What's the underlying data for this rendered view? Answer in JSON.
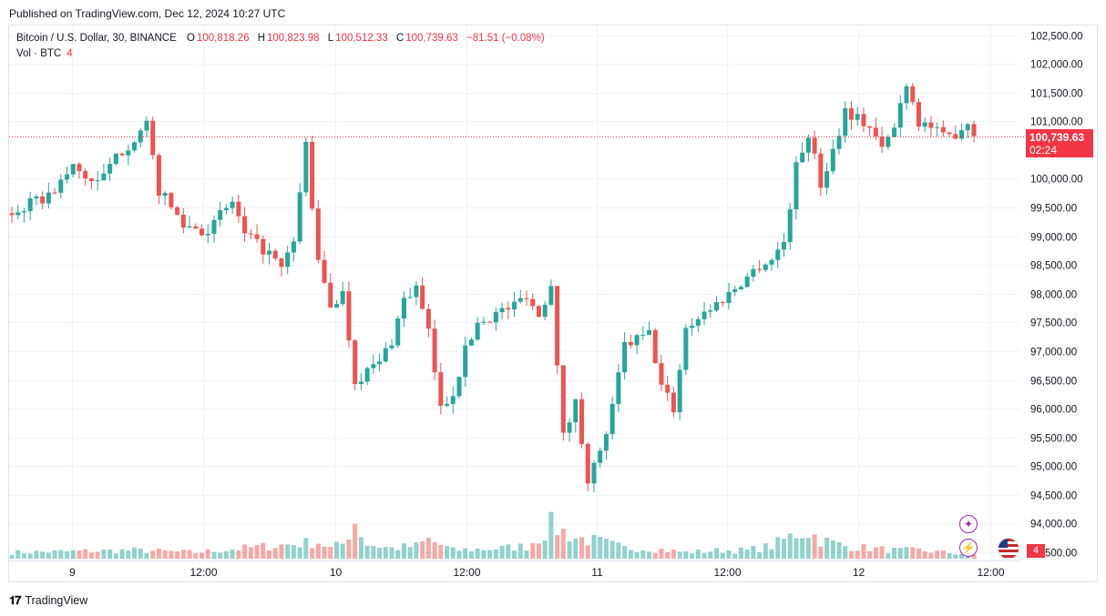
{
  "header": {
    "published": "Published on TradingView.com, Dec 12, 2024 10:27 UTC"
  },
  "legend": {
    "symbol": "Bitcoin / U.S. Dollar, 30, BINANCE",
    "o_label": "O",
    "o": "100,818.26",
    "h_label": "H",
    "h": "100,823.98",
    "l_label": "L",
    "l": "100,512.33",
    "c_label": "C",
    "c": "100,739.63",
    "change": "−81.51 (−0.08%)",
    "vol_label": "Vol · BTC",
    "vol_value": "4"
  },
  "price_tag": {
    "price": "100,739.63",
    "countdown": "02:24"
  },
  "vol_tag": "4",
  "footer": {
    "brand": "TradingView"
  },
  "colors": {
    "up": "#26a69a",
    "down": "#ef5350",
    "grid": "#f0f3fa",
    "last_line": "#f23645"
  },
  "icons": [
    "sparkle-icon",
    "lightning-icon",
    "us-flag-icon"
  ],
  "chart_data": {
    "type": "candlestick",
    "y_ticks": [
      "102,500.00",
      "102,000.00",
      "101,500.00",
      "101,000.00",
      "100,000.00",
      "99,500.00",
      "99,000.00",
      "98,500.00",
      "98,000.00",
      "97,500.00",
      "97,000.00",
      "96,500.00",
      "96,000.00",
      "95,500.00",
      "95,000.00",
      "94,500.00",
      "94,000.00",
      "93,500.00"
    ],
    "ylim": [
      93500,
      102600
    ],
    "x_ticks": [
      "9",
      "12:00",
      "10",
      "12:00",
      "11",
      "12:00",
      "12",
      "12:00"
    ],
    "last_price": 100739.63,
    "close_path": [
      [
        0,
        99400
      ],
      [
        6,
        99700
      ],
      [
        10,
        100200
      ],
      [
        14,
        99900
      ],
      [
        18,
        100500
      ],
      [
        22,
        100900
      ],
      [
        24,
        99800
      ],
      [
        28,
        99200
      ],
      [
        32,
        99100
      ],
      [
        36,
        99600
      ],
      [
        38,
        99000
      ],
      [
        42,
        98700
      ],
      [
        44,
        98400
      ],
      [
        46,
        98900
      ],
      [
        48,
        100600
      ],
      [
        50,
        98500
      ],
      [
        52,
        97800
      ],
      [
        54,
        98000
      ],
      [
        56,
        96500
      ],
      [
        60,
        96800
      ],
      [
        62,
        97200
      ],
      [
        64,
        97900
      ],
      [
        66,
        98100
      ],
      [
        68,
        97300
      ],
      [
        70,
        96000
      ],
      [
        72,
        96300
      ],
      [
        74,
        97000
      ],
      [
        76,
        97500
      ],
      [
        78,
        97600
      ],
      [
        82,
        97800
      ],
      [
        84,
        98000
      ],
      [
        86,
        97600
      ],
      [
        88,
        98200
      ],
      [
        90,
        95500
      ],
      [
        92,
        96100
      ],
      [
        94,
        94800
      ],
      [
        96,
        95200
      ],
      [
        98,
        96000
      ],
      [
        100,
        97100
      ],
      [
        104,
        97300
      ],
      [
        106,
        96400
      ],
      [
        108,
        96000
      ],
      [
        110,
        97400
      ],
      [
        112,
        97600
      ],
      [
        116,
        97900
      ],
      [
        118,
        98100
      ],
      [
        122,
        98500
      ],
      [
        124,
        98600
      ],
      [
        126,
        98900
      ],
      [
        128,
        100200
      ],
      [
        130,
        100800
      ],
      [
        132,
        99900
      ],
      [
        134,
        100500
      ],
      [
        136,
        101200
      ],
      [
        140,
        100900
      ],
      [
        142,
        100500
      ],
      [
        144,
        100900
      ],
      [
        146,
        101700
      ],
      [
        148,
        101000
      ],
      [
        150,
        100900
      ],
      [
        152,
        100700
      ],
      [
        154,
        100800
      ],
      [
        156,
        101000
      ],
      [
        157,
        100740
      ]
    ],
    "volume_profile": [
      [
        0,
        3
      ],
      [
        20,
        4
      ],
      [
        30,
        3
      ],
      [
        50,
        8
      ],
      [
        52,
        5
      ],
      [
        54,
        7
      ],
      [
        56,
        18
      ],
      [
        58,
        7
      ],
      [
        62,
        5
      ],
      [
        66,
        6
      ],
      [
        68,
        9
      ],
      [
        72,
        4
      ],
      [
        80,
        5
      ],
      [
        84,
        6
      ],
      [
        86,
        10
      ],
      [
        88,
        16
      ],
      [
        90,
        13
      ],
      [
        92,
        10
      ],
      [
        96,
        8
      ],
      [
        100,
        5
      ],
      [
        104,
        5
      ],
      [
        110,
        3
      ],
      [
        116,
        4
      ],
      [
        120,
        4
      ],
      [
        124,
        6
      ],
      [
        128,
        12
      ],
      [
        130,
        13
      ],
      [
        132,
        9
      ],
      [
        136,
        6
      ],
      [
        140,
        5
      ],
      [
        144,
        4
      ],
      [
        148,
        4
      ],
      [
        152,
        3
      ],
      [
        157,
        2
      ]
    ]
  }
}
